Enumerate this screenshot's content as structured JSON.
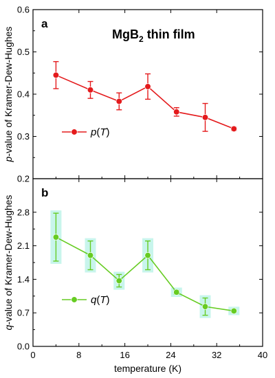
{
  "chart_data": [
    {
      "type": "line",
      "panel_label": "a",
      "annotation": {
        "main": "MgB",
        "sub": "2",
        "rest": " thin film"
      },
      "ylabel": {
        "italic": "p",
        "rest": "-value of Kramer-Dew-Hughes"
      },
      "ylim": [
        0.2,
        0.6
      ],
      "yticks": [
        "0.2",
        "0.3",
        "0.4",
        "0.5",
        "0.6"
      ],
      "legend": {
        "position": "bottom-left",
        "italic": "p",
        "open": "(",
        "var": "T",
        "close": ")"
      },
      "color": "#e41a1c",
      "error_bar_color": "#e41a1c",
      "error_band": false,
      "series": [
        {
          "x": [
            4,
            10,
            15,
            20,
            25,
            30,
            35
          ],
          "y": [
            0.445,
            0.41,
            0.383,
            0.418,
            0.358,
            0.345,
            0.318
          ],
          "err": [
            0.032,
            0.02,
            0.02,
            0.03,
            0.01,
            0.033,
            0.004
          ]
        }
      ]
    },
    {
      "type": "line",
      "panel_label": "b",
      "ylabel": {
        "italic": "q",
        "rest": "-value of Kramer-Dew-Hughes"
      },
      "ylim": [
        0.0,
        3.5
      ],
      "yticks": [
        "0.0",
        "0.7",
        "1.4",
        "2.1",
        "2.8"
      ],
      "legend": {
        "position": "bottom-left",
        "italic": "q",
        "open": "(",
        "var": "T",
        "close": ")"
      },
      "color": "#66cc22",
      "error_bar_color": "#66cc22",
      "error_band": true,
      "band_color": "#c8f5ec",
      "series": [
        {
          "x": [
            4,
            10,
            15,
            20,
            25,
            30,
            35
          ],
          "y": [
            2.28,
            1.9,
            1.37,
            1.9,
            1.13,
            0.83,
            0.74
          ],
          "err": [
            0.5,
            0.3,
            0.13,
            0.3,
            0.04,
            0.18,
            0.03
          ]
        }
      ]
    }
  ],
  "x_axis": {
    "xlim": [
      0,
      40
    ],
    "ticks": [
      "0",
      "8",
      "16",
      "24",
      "32",
      "40"
    ],
    "tick_values": [
      0,
      8,
      16,
      24,
      32,
      40
    ],
    "xlabel": "temperature (K)"
  }
}
